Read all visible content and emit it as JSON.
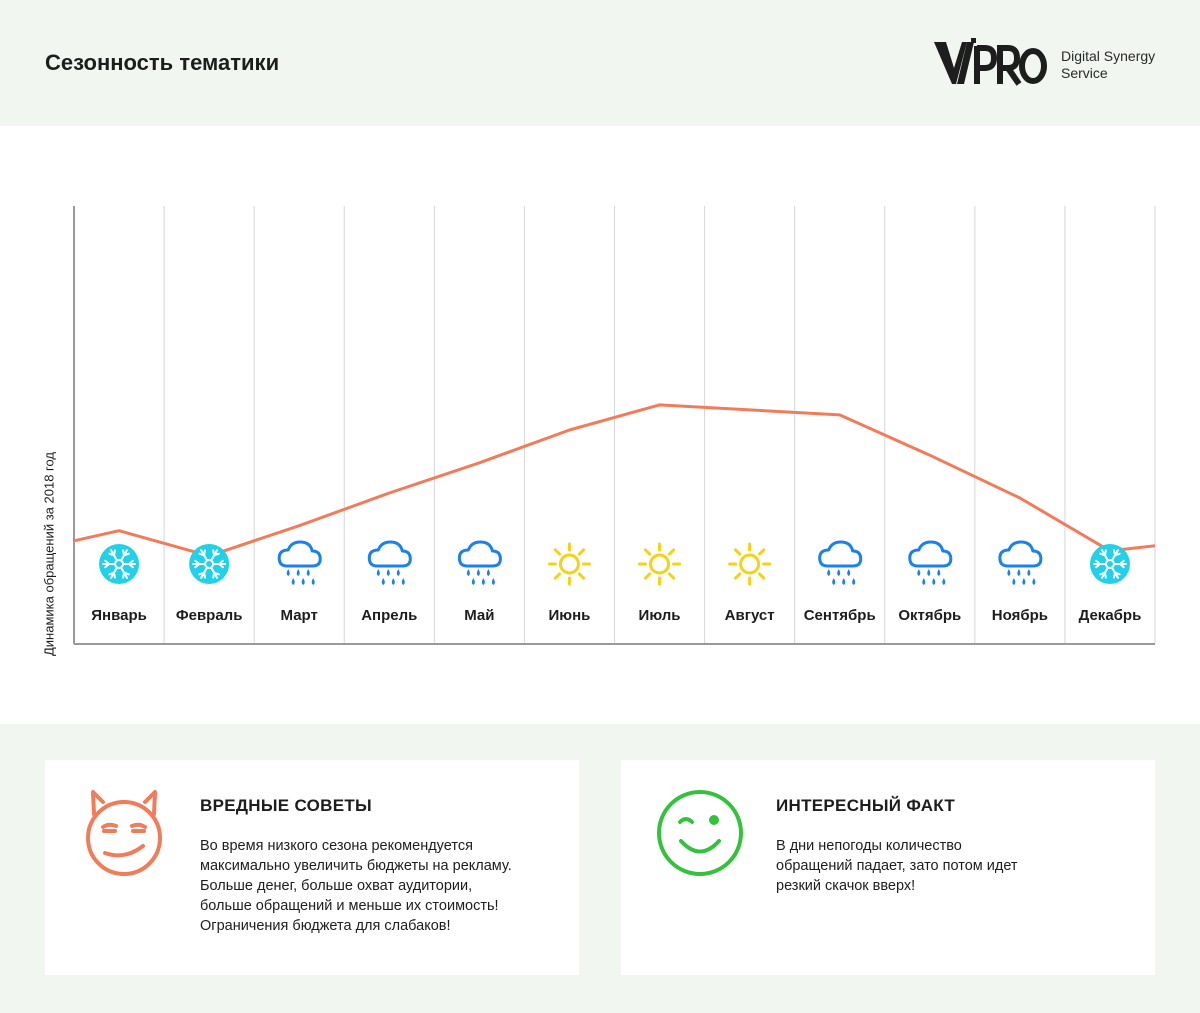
{
  "header": {
    "title": "Сезонность тематики",
    "logo_lines": [
      "Digital Synergy",
      "Service"
    ]
  },
  "colors": {
    "line": "#f07c5a",
    "snow": "#22d0e8",
    "rain": "#1c82e8",
    "sun": "#f7d116",
    "evil": "#f07c5a",
    "smile": "#34c23c",
    "grid": "#d6d6d6",
    "axis": "#9a9a9a"
  },
  "chart_data": {
    "type": "line",
    "ylabel": "Динамика обращений за 2018 год",
    "categories": [
      "Январь",
      "Февраль",
      "Март",
      "Апрель",
      "Май",
      "Июнь",
      "Июль",
      "Август",
      "Сентябрь",
      "Октябрь",
      "Ноябрь",
      "Декабрь"
    ],
    "weather_icons": [
      "snowflake-icon",
      "snowflake-icon",
      "rain-cloud-icon",
      "rain-cloud-icon",
      "rain-cloud-icon",
      "sun-icon",
      "sun-icon",
      "sun-icon",
      "rain-cloud-icon",
      "rain-cloud-icon",
      "rain-cloud-icon",
      "snowflake-icon"
    ],
    "series": [
      {
        "x": [
          0,
          0.5,
          1.5,
          2.5,
          3.5,
          4.5,
          5.5,
          6.5,
          7.5,
          8.5,
          9.5,
          10.5,
          11.5,
          12
        ],
        "values": [
          20.5,
          22.5,
          17.5,
          23.5,
          30,
          36,
          42.5,
          47.5,
          46.5,
          45.5,
          37.5,
          29,
          18.5,
          19.5
        ]
      }
    ],
    "xlim": [
      0,
      12
    ],
    "ylim": [
      0,
      87
    ],
    "grid": true,
    "legend": "none"
  },
  "cards": {
    "harmful": {
      "title": "ВРЕДНЫЕ СОВЕТЫ",
      "lines": [
        "Во время низкого сезона рекомендуется",
        "максимально увеличить бюджеты на рекламу.",
        "Больше денег, больше охват аудитории,",
        "больше обращений и меньше их стоимость!",
        "Ограничения бюджета для слабаков!"
      ],
      "icon": "devil-face-icon"
    },
    "fact": {
      "title": "ИНТЕРЕСНЫЙ ФАКТ",
      "lines": [
        "В дни непогоды количество",
        "обращений падает, зато потом идет",
        "резкий скачок вверх!"
      ],
      "icon": "winking-face-icon"
    }
  }
}
